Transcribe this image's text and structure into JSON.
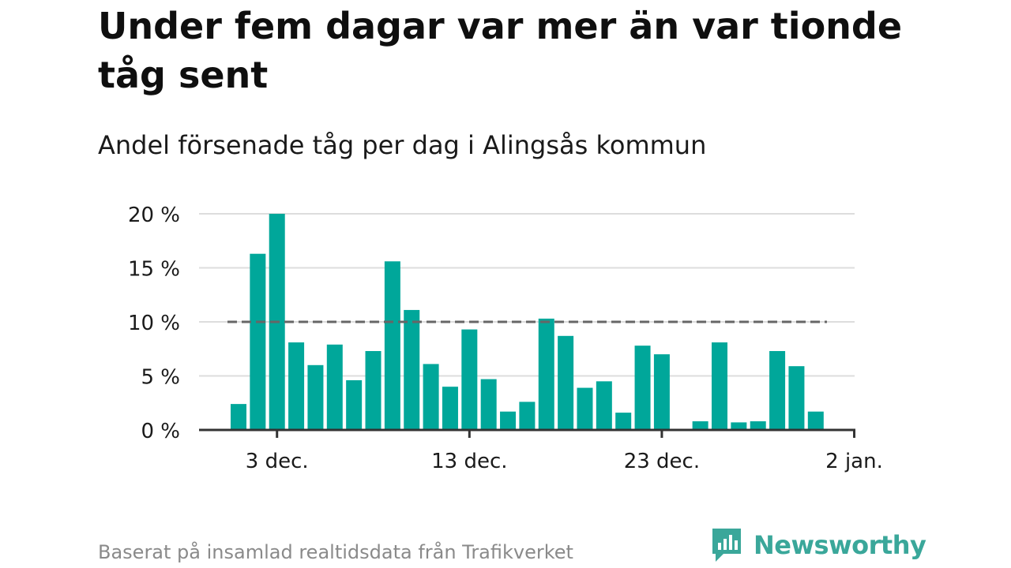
{
  "title": "Under fem dagar var mer än var tionde tåg sent",
  "subtitle": "Andel försenade tåg per dag i Alingsås kommun",
  "footer": {
    "source": "Baserat på insamlad realtidsdata från Trafikverket",
    "brand": "Newsworthy",
    "brand_icon": "chart-speech-bubble-icon"
  },
  "colors": {
    "bar": "#00a79a",
    "grid": "#dddddd",
    "axis": "#333333",
    "reference_line": "#666666",
    "brand": "#3aa79a"
  },
  "chart_data": {
    "type": "bar",
    "title": "Under fem dagar var mer än var tionde tåg sent",
    "subtitle": "Andel försenade tåg per dag i Alingsås kommun",
    "xlabel": "",
    "ylabel": "",
    "x_tick_labels": [
      "3 dec.",
      "13 dec.",
      "23 dec.",
      "2 jan."
    ],
    "x_tick_dates": [
      "2023-12-03",
      "2023-12-13",
      "2023-12-23",
      "2024-01-02"
    ],
    "y_ticks": [
      0,
      5,
      10,
      15,
      20
    ],
    "y_tick_labels": [
      "0 %",
      "5 %",
      "10 %",
      "15 %",
      "20 %"
    ],
    "ylim": [
      0,
      20
    ],
    "grid": true,
    "reference_line": {
      "value": 10,
      "style": "dashed"
    },
    "dates": [
      "2023-12-01",
      "2023-12-02",
      "2023-12-03",
      "2023-12-04",
      "2023-12-05",
      "2023-12-06",
      "2023-12-07",
      "2023-12-08",
      "2023-12-09",
      "2023-12-10",
      "2023-12-11",
      "2023-12-12",
      "2023-12-13",
      "2023-12-14",
      "2023-12-15",
      "2023-12-16",
      "2023-12-17",
      "2023-12-18",
      "2023-12-19",
      "2023-12-20",
      "2023-12-21",
      "2023-12-22",
      "2023-12-23",
      "2023-12-24",
      "2023-12-25",
      "2023-12-26",
      "2023-12-27",
      "2023-12-28",
      "2023-12-29",
      "2023-12-30",
      "2023-12-31",
      "2024-01-01"
    ],
    "values": [
      2.4,
      16.3,
      20.0,
      8.1,
      6.0,
      7.9,
      4.6,
      7.3,
      15.6,
      11.1,
      6.1,
      4.0,
      9.3,
      4.7,
      1.7,
      2.6,
      10.3,
      8.7,
      3.9,
      4.5,
      1.6,
      7.8,
      7.0,
      0.0,
      0.8,
      8.1,
      0.7,
      0.8,
      7.3,
      5.9,
      1.7,
      0.0
    ]
  }
}
